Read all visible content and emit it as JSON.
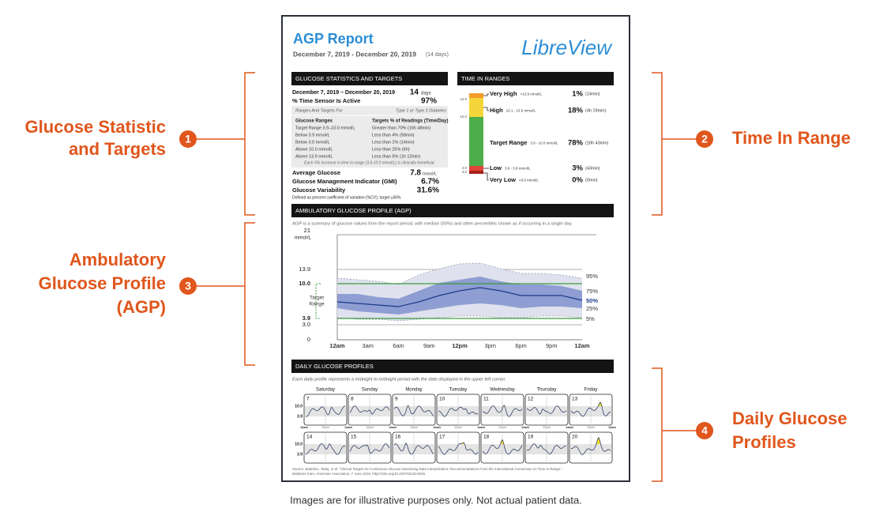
{
  "callouts": [
    {
      "number": "1",
      "lines": [
        "Glucose Statistic",
        "and Targets"
      ]
    },
    {
      "number": "2",
      "lines": [
        "Time In Range"
      ]
    },
    {
      "number": "3",
      "lines": [
        "Ambulatory",
        "Glucose Profile",
        "(AGP)"
      ]
    },
    {
      "number": "4",
      "lines": [
        "Daily Glucose",
        "Profiles"
      ]
    }
  ],
  "report": {
    "title": "AGP Report",
    "date_range": "December 7, 2019 - December 20, 2019",
    "date_days": "(14 days)",
    "brand": "LibreView",
    "statistics": {
      "heading": "GLUCOSE STATISTICS AND TARGETS",
      "period": "December 7, 2019 – December 20, 2019",
      "period_value": "14",
      "period_unit": "days",
      "sensor_label": "% Time Sensor Is Active",
      "sensor_value": "97%",
      "targets": {
        "label": "Ranges And Targets For",
        "population": "Type 1 or Type 2 Diabetes",
        "col1": "Glucose Ranges",
        "col2": "Targets % of Readings (Time/Day)",
        "rows": [
          [
            "Target Range 3.9–10.0 mmol/L",
            "Greater than 70% (16h 48min)"
          ],
          [
            "Below 3.9 mmol/L",
            "Less than 4% (58min)"
          ],
          [
            "Below 3.0 mmol/L",
            "Less than 1% (14min)"
          ],
          [
            "Above 10.0 mmol/L",
            "Less than 25% (6h)"
          ],
          [
            "Above 13.9 mmol/L",
            "Less than 5% (1h 12min)"
          ]
        ],
        "note": "Each 5% increase in time in range (3.9-10.0 mmol/L) is clinically beneficial."
      },
      "metrics": [
        {
          "label": "Average Glucose",
          "value": "7.8",
          "unit": "mmol/L"
        },
        {
          "label": "Glucose Management Indicator (GMI)",
          "value": "6.7%"
        },
        {
          "label": "Glucose Variability",
          "value": "31.6%"
        }
      ],
      "footnote": "Defined as percent coefficient of variation (%CV); target ≤36%"
    },
    "time_in_ranges": {
      "heading": "TIME IN RANGES",
      "axis": [
        "13.9",
        "10.0",
        "3.9",
        "3.0"
      ],
      "ranges": [
        {
          "name": "Very High",
          "range": ">13.9 mmol/L",
          "percent": "1%",
          "time": "(14min)"
        },
        {
          "name": "High",
          "range": "10.1 - 13.9 mmol/L",
          "percent": "18%",
          "time": "(4h 19min)"
        },
        {
          "name": "Target Range",
          "range": "3.9 - 10.0 mmol/L",
          "percent": "78%",
          "time": "(18h 43min)"
        },
        {
          "name": "Low",
          "range": "3.0 - 3.8 mmol/L",
          "percent": "3%",
          "time": "(43min)"
        },
        {
          "name": "Very Low",
          "range": "<3.0 mmol/L",
          "percent": "0%",
          "time": "(0min)"
        }
      ]
    },
    "agp": {
      "heading": "AMBULATORY GLUCOSE PROFILE (AGP)",
      "description": "AGP is a summary of glucose values from the report period, with median (50%) and other percentiles shown as if occurring in a single day.",
      "unit": "mmol/L",
      "y_labels": [
        "21",
        "13.9",
        "10.0",
        "3.9",
        "3.0",
        "0"
      ],
      "x_labels": [
        "12am",
        "3am",
        "6am",
        "9am",
        "12pm",
        "3pm",
        "6pm",
        "9pm",
        "12am"
      ],
      "target_label": [
        "Target",
        "Range"
      ],
      "percentiles": [
        "95%",
        "75%",
        "50%",
        "25%",
        "5%"
      ]
    },
    "daily": {
      "heading": "DAILY GLUCOSE PROFILES",
      "description": "Each daily profile represents a midnight to midnight period with the date displayed in the upper left corner.",
      "weekdays": [
        "Saturday",
        "Sunday",
        "Monday",
        "Tuesday",
        "Wednesday",
        "Thursday",
        "Friday"
      ],
      "weeks": [
        [
          "7",
          "8",
          "9",
          "10",
          "11",
          "12",
          "13"
        ],
        [
          "14",
          "15",
          "16",
          "17",
          "18",
          "19",
          "20"
        ]
      ],
      "y_labels": [
        "10.0",
        "3.9"
      ],
      "time_labels": [
        "12am",
        "12pm"
      ]
    },
    "source": [
      "Source: Battelino, Tadej, et al. “Clinical Targets for Continuous Glucose Monitoring Data Interpretation: Recommendations From the International Consensus on Time in Range.”",
      "Diabetes Care, American Association, 7 June 2019, https://doi.org/10.2337/dci19-0028."
    ]
  },
  "disclaimer": "Images are for illustrative purposes only. Not actual patient data."
}
